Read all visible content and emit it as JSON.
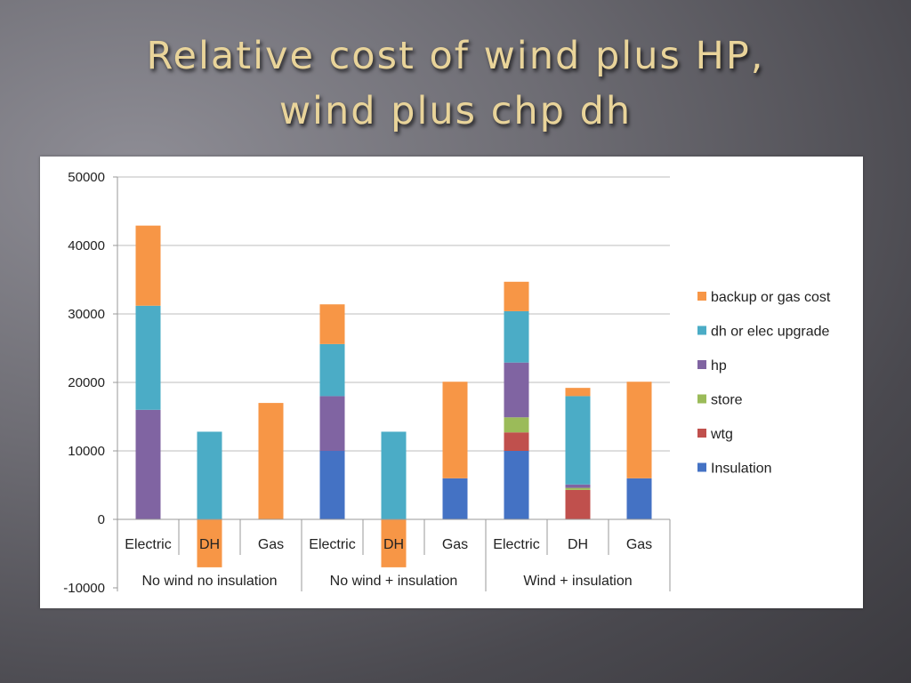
{
  "slide": {
    "title_line1": "Relative cost of wind plus HP,",
    "title_line2": "wind plus chp dh"
  },
  "chart_data": {
    "type": "bar",
    "stacked": true,
    "title": "",
    "xlabel": "",
    "ylabel": "",
    "ylim": [
      -10000,
      50000
    ],
    "yticks": [
      -10000,
      0,
      10000,
      20000,
      30000,
      40000,
      50000
    ],
    "grid": true,
    "legend_position": "right",
    "groups": [
      {
        "label": "No wind no insulation",
        "categories": [
          "Electric",
          "DH",
          "Gas"
        ]
      },
      {
        "label": "No wind +  insulation",
        "categories": [
          "Electric",
          "DH",
          "Gas"
        ]
      },
      {
        "label": "Wind + insulation",
        "categories": [
          "Electric",
          "DH",
          "Gas"
        ]
      }
    ],
    "categories": [
      "Electric",
      "DH",
      "Gas",
      "Electric",
      "DH",
      "Gas",
      "Electric",
      "DH",
      "Gas"
    ],
    "series": [
      {
        "name": "Insulation",
        "color": "#4472c4",
        "values": [
          0,
          0,
          0,
          10000,
          0,
          6000,
          10000,
          0,
          6000
        ]
      },
      {
        "name": "wtg",
        "color": "#c0504d",
        "values": [
          0,
          0,
          0,
          0,
          0,
          0,
          2700,
          4300,
          0
        ]
      },
      {
        "name": "store",
        "color": "#9bbb59",
        "values": [
          0,
          0,
          0,
          0,
          0,
          0,
          2200,
          300,
          0
        ]
      },
      {
        "name": "hp",
        "color": "#8064a2",
        "values": [
          16000,
          0,
          0,
          8000,
          0,
          0,
          8000,
          500,
          0
        ]
      },
      {
        "name": "dh or elec upgrade",
        "color": "#4bacc6",
        "values": [
          15200,
          12800,
          0,
          7600,
          12800,
          0,
          7500,
          12900,
          0
        ]
      },
      {
        "name": "backup or gas cost",
        "color": "#f79646",
        "values": [
          11700,
          -7000,
          17000,
          5800,
          -7000,
          14100,
          4300,
          1200,
          14100
        ]
      }
    ],
    "legend_order": [
      "backup or gas cost",
      "dh or elec upgrade",
      "hp",
      "store",
      "wtg",
      "Insulation"
    ]
  }
}
